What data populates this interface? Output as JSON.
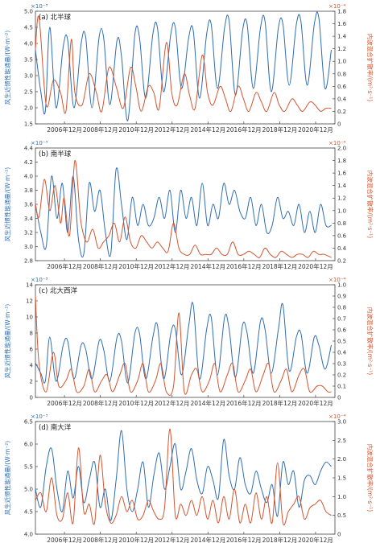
{
  "colors": {
    "left": "#2f6db3",
    "right": "#d4542e",
    "axis": "#444444",
    "tick": "#333333"
  },
  "x_tick_labels": [
    "2006年12月",
    "2008年12月",
    "2010年12月",
    "2012年12月",
    "2014年12月",
    "2016年12月",
    "2018年12月",
    "2020年12月"
  ],
  "chart_data": [
    {
      "type": "line",
      "title": "(a) 北半球",
      "ylabel_left": "风生近惯性能通量/(W·m⁻²)",
      "ylabel_right": "内波混合扩散率/(m²·s⁻¹)",
      "left_multiplier": "×10⁻³",
      "right_multiplier": "×10⁻⁴",
      "x_range": [
        2005.3,
        2022.0
      ],
      "ylim_left": [
        1.5,
        5.0
      ],
      "ylim_right": [
        0,
        1.8
      ],
      "left_ticks": [
        "1.5",
        "2.0",
        "2.5",
        "3.0",
        "3.5",
        "4.0",
        "4.5",
        "5.0"
      ],
      "right_ticks": [
        "0",
        "0.2",
        "0.4",
        "0.6",
        "0.8",
        "1.0",
        "1.2",
        "1.4",
        "1.6",
        "1.8"
      ],
      "series": [
        {
          "axis": "left",
          "x": [
            2005.3,
            2005.6,
            2005.85,
            2006.1,
            2006.45,
            2006.85,
            2007.1,
            2007.45,
            2007.85,
            2008.1,
            2008.45,
            2008.85,
            2009.1,
            2009.45,
            2009.85,
            2010.1,
            2010.45,
            2010.85,
            2011.1,
            2011.45,
            2011.85,
            2012.1,
            2012.45,
            2012.85,
            2013.1,
            2013.45,
            2013.85,
            2014.1,
            2014.45,
            2014.85,
            2015.1,
            2015.45,
            2015.85,
            2016.1,
            2016.45,
            2016.85,
            2017.1,
            2017.45,
            2017.85,
            2018.1,
            2018.45,
            2018.85,
            2019.1,
            2019.45,
            2019.85,
            2020.1,
            2020.45,
            2020.85,
            2021.1,
            2021.45,
            2021.8
          ],
          "y": [
            3.8,
            2.5,
            1.9,
            4.5,
            2.0,
            3.9,
            4.1,
            2.0,
            4.0,
            4.2,
            2.0,
            4.2,
            4.2,
            2.1,
            4.1,
            3.6,
            1.6,
            4.3,
            4.2,
            2.3,
            4.3,
            4.5,
            2.5,
            4.3,
            4.5,
            2.6,
            4.2,
            4.4,
            2.3,
            4.3,
            4.6,
            2.6,
            4.5,
            4.7,
            2.4,
            4.4,
            4.6,
            2.6,
            4.5,
            4.7,
            2.5,
            4.5,
            4.6,
            2.7,
            4.6,
            4.7,
            2.7,
            4.6,
            4.8,
            2.6,
            3.8
          ]
        },
        {
          "axis": "right",
          "x": [
            2005.3,
            2005.5,
            2005.9,
            2006.3,
            2006.7,
            2007.0,
            2007.3,
            2007.5,
            2007.9,
            2008.3,
            2008.7,
            2009.0,
            2009.4,
            2009.8,
            2010.2,
            2010.6,
            2010.9,
            2011.2,
            2011.6,
            2011.9,
            2012.2,
            2012.6,
            2012.9,
            2013.2,
            2013.6,
            2013.9,
            2014.2,
            2014.6,
            2014.9,
            2015.2,
            2015.6,
            2015.9,
            2016.2,
            2016.6,
            2016.9,
            2017.2,
            2017.6,
            2017.9,
            2018.2,
            2018.6,
            2018.9,
            2019.2,
            2019.6,
            2019.9,
            2020.2,
            2020.6,
            2020.9,
            2021.2,
            2021.5,
            2021.8
          ],
          "y": [
            1.2,
            1.7,
            0.3,
            0.7,
            0.5,
            0.2,
            1.35,
            0.5,
            0.3,
            0.8,
            0.5,
            0.2,
            0.9,
            0.6,
            0.25,
            0.9,
            0.6,
            0.2,
            0.6,
            0.5,
            0.25,
            1.3,
            0.5,
            0.3,
            0.8,
            0.45,
            0.25,
            1.1,
            0.5,
            0.3,
            0.6,
            0.4,
            0.2,
            0.6,
            0.4,
            0.2,
            0.5,
            0.35,
            0.2,
            0.5,
            0.3,
            0.2,
            0.4,
            0.3,
            0.2,
            0.35,
            0.3,
            0.2,
            0.25,
            0.25
          ]
        }
      ]
    },
    {
      "type": "line",
      "title": "(b) 南半球",
      "ylabel_left": "风生近惯性能通量/(W·m⁻²)",
      "ylabel_right": "内波混合扩散率/(m²·s⁻¹)",
      "left_multiplier": "×10⁻³",
      "right_multiplier": "×10⁻⁴",
      "x_range": [
        2005.3,
        2022.0
      ],
      "ylim_left": [
        2.8,
        4.4
      ],
      "ylim_right": [
        0.2,
        2.0
      ],
      "left_ticks": [
        "2.8",
        "3.0",
        "3.2",
        "3.4",
        "3.6",
        "3.8",
        "4.0",
        "4.2",
        "4.4"
      ],
      "right_ticks": [
        "0.2",
        "0.4",
        "0.6",
        "0.8",
        "1.0",
        "1.2",
        "1.4",
        "1.6",
        "1.8",
        "2.0"
      ],
      "series": [
        {
          "axis": "left",
          "x": [
            2005.3,
            2005.6,
            2005.9,
            2006.2,
            2006.5,
            2006.8,
            2007.1,
            2007.4,
            2007.7,
            2008.0,
            2008.3,
            2008.6,
            2008.9,
            2009.2,
            2009.5,
            2009.8,
            2010.1,
            2010.4,
            2010.7,
            2011.0,
            2011.3,
            2011.6,
            2011.9,
            2012.2,
            2012.5,
            2012.8,
            2013.1,
            2013.4,
            2013.7,
            2014.0,
            2014.3,
            2014.6,
            2014.9,
            2015.2,
            2015.5,
            2015.8,
            2016.1,
            2016.4,
            2016.7,
            2017.0,
            2017.3,
            2017.6,
            2017.9,
            2018.2,
            2018.5,
            2018.8,
            2019.1,
            2019.4,
            2019.7,
            2020.0,
            2020.3,
            2020.6,
            2020.9,
            2021.2,
            2021.5,
            2021.8
          ],
          "y": [
            3.6,
            3.2,
            3.0,
            4.0,
            3.4,
            3.9,
            3.2,
            4.0,
            3.1,
            2.9,
            3.9,
            3.5,
            3.8,
            3.2,
            2.9,
            4.1,
            3.6,
            3.1,
            3.7,
            3.3,
            3.6,
            3.3,
            3.4,
            3.7,
            3.4,
            3.8,
            3.2,
            3.8,
            3.4,
            3.7,
            3.3,
            3.9,
            3.3,
            3.6,
            3.4,
            3.9,
            3.6,
            3.8,
            3.5,
            3.4,
            3.7,
            3.3,
            3.6,
            3.2,
            3.3,
            3.7,
            3.4,
            3.5,
            3.3,
            3.6,
            3.2,
            3.5,
            3.2,
            3.6,
            3.3,
            3.3
          ]
        },
        {
          "axis": "right",
          "x": [
            2005.3,
            2005.5,
            2005.8,
            2006.1,
            2006.4,
            2006.7,
            2006.9,
            2007.2,
            2007.5,
            2007.8,
            2008.0,
            2008.2,
            2008.5,
            2008.8,
            2009.1,
            2009.4,
            2009.7,
            2010.0,
            2010.3,
            2010.6,
            2010.9,
            2011.2,
            2011.5,
            2011.8,
            2012.1,
            2012.4,
            2012.7,
            2013.0,
            2013.3,
            2013.6,
            2013.9,
            2014.2,
            2014.5,
            2014.8,
            2015.1,
            2015.4,
            2015.7,
            2016.0,
            2016.3,
            2016.6,
            2016.9,
            2017.2,
            2017.5,
            2017.8,
            2018.1,
            2018.4,
            2018.7,
            2019.0,
            2019.3,
            2019.6,
            2019.9,
            2020.2,
            2020.5,
            2020.8,
            2021.1,
            2021.4,
            2021.8
          ],
          "y": [
            1.1,
            0.9,
            1.5,
            1.0,
            1.4,
            0.8,
            1.2,
            0.6,
            1.8,
            0.9,
            0.6,
            0.5,
            0.7,
            0.4,
            0.5,
            0.6,
            0.8,
            0.5,
            0.9,
            0.5,
            0.4,
            0.6,
            0.5,
            0.4,
            0.5,
            0.4,
            0.35,
            0.8,
            0.4,
            0.3,
            0.3,
            0.45,
            0.3,
            0.3,
            0.3,
            0.4,
            0.3,
            0.3,
            0.5,
            0.3,
            0.3,
            0.35,
            0.3,
            0.25,
            0.4,
            0.3,
            0.25,
            0.35,
            0.3,
            0.25,
            0.3,
            0.3,
            0.25,
            0.35,
            0.3,
            0.3,
            0.25
          ]
        }
      ]
    },
    {
      "type": "line",
      "title": "(c) 北大西洋",
      "ylabel_left": "风生近惯性能通量/(W·m⁻²)",
      "ylabel_right": "内波混合扩散率/(m²·s⁻¹)",
      "left_multiplier": "×10⁻³",
      "right_multiplier": "×10⁻⁴",
      "x_range": [
        2005.3,
        2022.0
      ],
      "ylim_left": [
        0,
        14
      ],
      "ylim_right": [
        0,
        1.0
      ],
      "left_ticks": [
        "0",
        "2",
        "4",
        "6",
        "8",
        "10",
        "12",
        "14"
      ],
      "right_ticks": [
        "0",
        "0.1",
        "0.2",
        "0.3",
        "0.4",
        "0.5",
        "0.6",
        "0.7",
        "0.8",
        "0.9",
        "1.0"
      ],
      "series": [
        {
          "axis": "left",
          "x": [
            2005.3,
            2005.6,
            2005.85,
            2006.1,
            2006.45,
            2006.85,
            2007.1,
            2007.45,
            2007.85,
            2008.1,
            2008.45,
            2008.85,
            2009.1,
            2009.45,
            2009.85,
            2010.1,
            2010.45,
            2010.85,
            2011.1,
            2011.45,
            2011.85,
            2012.1,
            2012.45,
            2012.85,
            2013.1,
            2013.45,
            2013.85,
            2014.1,
            2014.45,
            2014.85,
            2015.1,
            2015.45,
            2015.85,
            2016.1,
            2016.45,
            2016.85,
            2017.1,
            2017.45,
            2017.85,
            2018.1,
            2018.45,
            2018.85,
            2019.1,
            2019.45,
            2019.85,
            2020.1,
            2020.45,
            2020.85,
            2021.1,
            2021.45,
            2021.8
          ],
          "y": [
            4.3,
            3.0,
            2.0,
            7.5,
            2.0,
            6.5,
            7.0,
            2.3,
            6.5,
            6.0,
            2.3,
            7.0,
            6.0,
            2.0,
            7.5,
            7.0,
            1.8,
            8.0,
            8.0,
            2.3,
            7.5,
            9.0,
            2.3,
            8.0,
            8.5,
            2.8,
            9.0,
            11.5,
            2.3,
            8.5,
            10.0,
            2.8,
            10.0,
            8.5,
            2.5,
            9.0,
            8.0,
            3.0,
            9.5,
            8.5,
            3.0,
            8.5,
            11.5,
            3.3,
            7.5,
            8.0,
            3.0,
            7.5,
            6.5,
            3.5,
            6.5
          ]
        },
        {
          "axis": "right",
          "x": [
            2005.3,
            2005.5,
            2005.9,
            2006.3,
            2006.6,
            2007.0,
            2007.3,
            2007.6,
            2008.0,
            2008.3,
            2008.6,
            2009.0,
            2009.3,
            2009.6,
            2010.0,
            2010.3,
            2010.6,
            2011.0,
            2011.3,
            2011.6,
            2012.0,
            2012.3,
            2012.6,
            2013.0,
            2013.3,
            2013.6,
            2014.0,
            2014.3,
            2014.6,
            2015.0,
            2015.3,
            2015.6,
            2016.0,
            2016.3,
            2016.6,
            2017.0,
            2017.3,
            2017.6,
            2018.0,
            2018.3,
            2018.6,
            2019.0,
            2019.3,
            2019.6,
            2020.0,
            2020.3,
            2020.6,
            2021.0,
            2021.3,
            2021.6,
            2021.8
          ],
          "y": [
            0.9,
            0.3,
            0.05,
            0.4,
            0.1,
            0.15,
            0.25,
            0.05,
            0.1,
            0.25,
            0.05,
            0.15,
            0.2,
            0.05,
            0.2,
            0.3,
            0.05,
            0.15,
            0.3,
            0.05,
            0.15,
            0.3,
            0.05,
            0.1,
            0.75,
            0.05,
            0.2,
            0.25,
            0.05,
            0.15,
            0.3,
            0.05,
            0.2,
            0.3,
            0.05,
            0.15,
            0.25,
            0.05,
            0.2,
            0.3,
            0.05,
            0.15,
            0.25,
            0.05,
            0.2,
            0.25,
            0.05,
            0.1,
            0.1,
            0.05,
            0.05
          ]
        }
      ]
    },
    {
      "type": "line",
      "title": "(d) 南大洋",
      "ylabel_left": "风生近惯性能通量/(W·m⁻²)",
      "ylabel_right": "内波混合扩散率/(m²·s⁻¹)",
      "left_multiplier": "×10⁻³",
      "right_multiplier": "×10⁻⁴",
      "x_range": [
        2005.3,
        2022.0
      ],
      "ylim_left": [
        4.0,
        6.5
      ],
      "ylim_right": [
        0,
        3.0
      ],
      "left_ticks": [
        "4.0",
        "4.5",
        "5.0",
        "5.5",
        "6.0",
        "6.5"
      ],
      "right_ticks": [
        "0",
        "0.5",
        "1.0",
        "1.5",
        "2.0",
        "2.5",
        "3.0"
      ],
      "series": [
        {
          "axis": "left",
          "x": [
            2005.3,
            2005.6,
            2005.9,
            2006.2,
            2006.5,
            2006.8,
            2007.1,
            2007.4,
            2007.7,
            2008.0,
            2008.3,
            2008.6,
            2008.9,
            2009.2,
            2009.5,
            2009.8,
            2010.1,
            2010.4,
            2010.7,
            2011.0,
            2011.3,
            2011.6,
            2011.9,
            2012.2,
            2012.5,
            2012.8,
            2013.1,
            2013.4,
            2013.7,
            2014.0,
            2014.3,
            2014.6,
            2014.9,
            2015.2,
            2015.5,
            2015.8,
            2016.1,
            2016.4,
            2016.7,
            2017.0,
            2017.3,
            2017.6,
            2017.9,
            2018.2,
            2018.5,
            2018.8,
            2019.1,
            2019.4,
            2019.7,
            2020.0,
            2020.3,
            2020.6,
            2020.9,
            2021.2,
            2021.5,
            2021.8
          ],
          "y": [
            5.0,
            4.6,
            5.5,
            5.9,
            5.0,
            4.5,
            5.4,
            4.8,
            5.5,
            4.7,
            5.2,
            5.6,
            4.6,
            5.0,
            4.3,
            5.2,
            6.3,
            5.0,
            4.5,
            5.0,
            5.6,
            4.6,
            5.3,
            5.8,
            5.0,
            5.5,
            6.0,
            5.0,
            5.4,
            5.9,
            5.2,
            4.9,
            5.5,
            5.2,
            4.8,
            6.1,
            5.3,
            5.0,
            5.7,
            5.1,
            4.9,
            5.4,
            5.0,
            4.7,
            5.1,
            4.4,
            5.6,
            5.1,
            5.4,
            4.6,
            5.2,
            5.3,
            5.1,
            5.4,
            5.6,
            5.5
          ]
        },
        {
          "axis": "right",
          "x": [
            2005.3,
            2005.6,
            2005.9,
            2006.2,
            2006.5,
            2006.8,
            2007.1,
            2007.4,
            2007.7,
            2008.0,
            2008.3,
            2008.6,
            2008.9,
            2009.2,
            2009.5,
            2009.8,
            2010.1,
            2010.4,
            2010.7,
            2011.0,
            2011.3,
            2011.6,
            2011.9,
            2012.2,
            2012.5,
            2012.8,
            2013.1,
            2013.4,
            2013.7,
            2014.0,
            2014.3,
            2014.6,
            2014.9,
            2015.2,
            2015.5,
            2015.8,
            2016.1,
            2016.4,
            2016.7,
            2017.0,
            2017.3,
            2017.6,
            2017.9,
            2018.2,
            2018.5,
            2018.8,
            2019.1,
            2019.4,
            2019.7,
            2020.0,
            2020.3,
            2020.6,
            2020.9,
            2021.2,
            2021.5,
            2021.8
          ],
          "y": [
            0.9,
            1.1,
            0.6,
            1.5,
            0.5,
            0.4,
            1.1,
            0.3,
            2.3,
            0.6,
            0.8,
            0.3,
            2.1,
            0.8,
            0.3,
            0.5,
            1.0,
            0.6,
            0.9,
            0.4,
            0.5,
            0.9,
            0.6,
            0.4,
            0.7,
            2.8,
            0.5,
            0.8,
            0.5,
            0.9,
            0.5,
            1.0,
            0.4,
            0.9,
            0.3,
            1.0,
            0.4,
            1.2,
            0.3,
            0.8,
            0.3,
            1.1,
            0.4,
            1.0,
            0.3,
            1.9,
            0.3,
            0.6,
            0.8,
            1.0,
            0.4,
            0.7,
            0.8,
            0.9,
            0.6,
            0.5
          ]
        }
      ]
    }
  ]
}
